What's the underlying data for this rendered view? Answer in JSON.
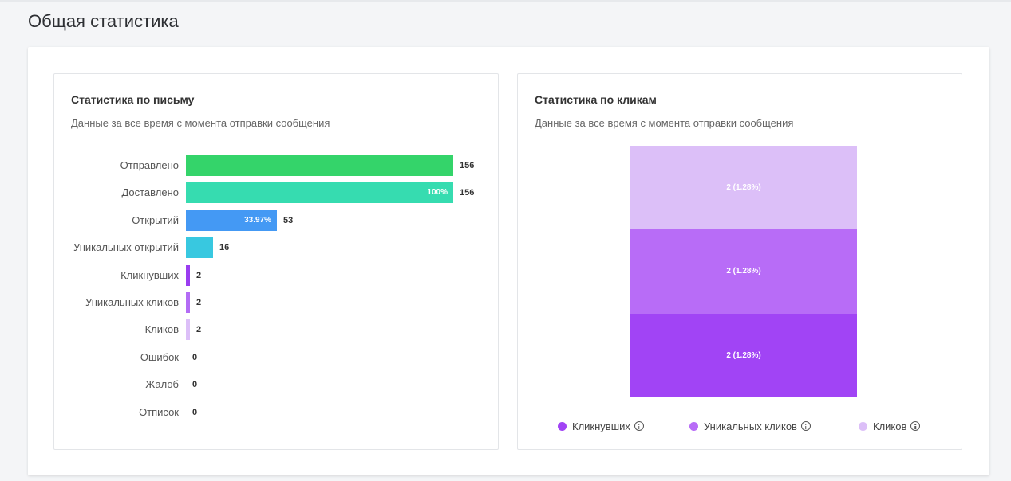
{
  "page": {
    "title": "Общая статистика"
  },
  "letter_panel": {
    "title": "Статистика по письму",
    "subtitle": "Данные за все время с момента отправки сообщения"
  },
  "clicks_panel": {
    "title": "Статистика по кликам",
    "subtitle": "Данные за все время с момента отправки сообщения"
  },
  "chart_data": [
    {
      "type": "bar",
      "orientation": "horizontal",
      "title": "Статистика по письму",
      "categories": [
        "Отправлено",
        "Доставлено",
        "Открытий",
        "Уникальных открытий",
        "Кликнувших",
        "Уникальных кликов",
        "Кликов",
        "Ошибок",
        "Жалоб",
        "Отписок"
      ],
      "values": [
        156,
        156,
        53,
        16,
        2,
        2,
        2,
        0,
        0,
        0
      ],
      "value_labels": [
        "156",
        "156",
        "53",
        "16",
        "2",
        "2",
        "2",
        "0",
        "0",
        "0"
      ],
      "inside_labels": [
        "",
        "100%",
        "33.97%",
        "",
        "",
        "",
        "",
        "",
        "",
        ""
      ],
      "colors": [
        "#34d46a",
        "#36dcb0",
        "#4499f4",
        "#38c8e0",
        "#9a3df0",
        "#b36cf5",
        "#dcbff8",
        "#cccccc",
        "#cccccc",
        "#cccccc"
      ],
      "xlim": [
        0,
        156
      ],
      "grid": false
    },
    {
      "type": "bar",
      "stacked": true,
      "title": "Статистика по кликам",
      "series": [
        {
          "name": "Кликнувших",
          "value": 2,
          "label": "2 (1.28%)",
          "color": "#a144f5"
        },
        {
          "name": "Уникальных кликов",
          "value": 2,
          "label": "2 (1.28%)",
          "color": "#b86cf7"
        },
        {
          "name": "Кликов",
          "value": 2,
          "label": "2 (1.28%)",
          "color": "#dcbff8"
        }
      ],
      "legend_position": "bottom"
    }
  ]
}
